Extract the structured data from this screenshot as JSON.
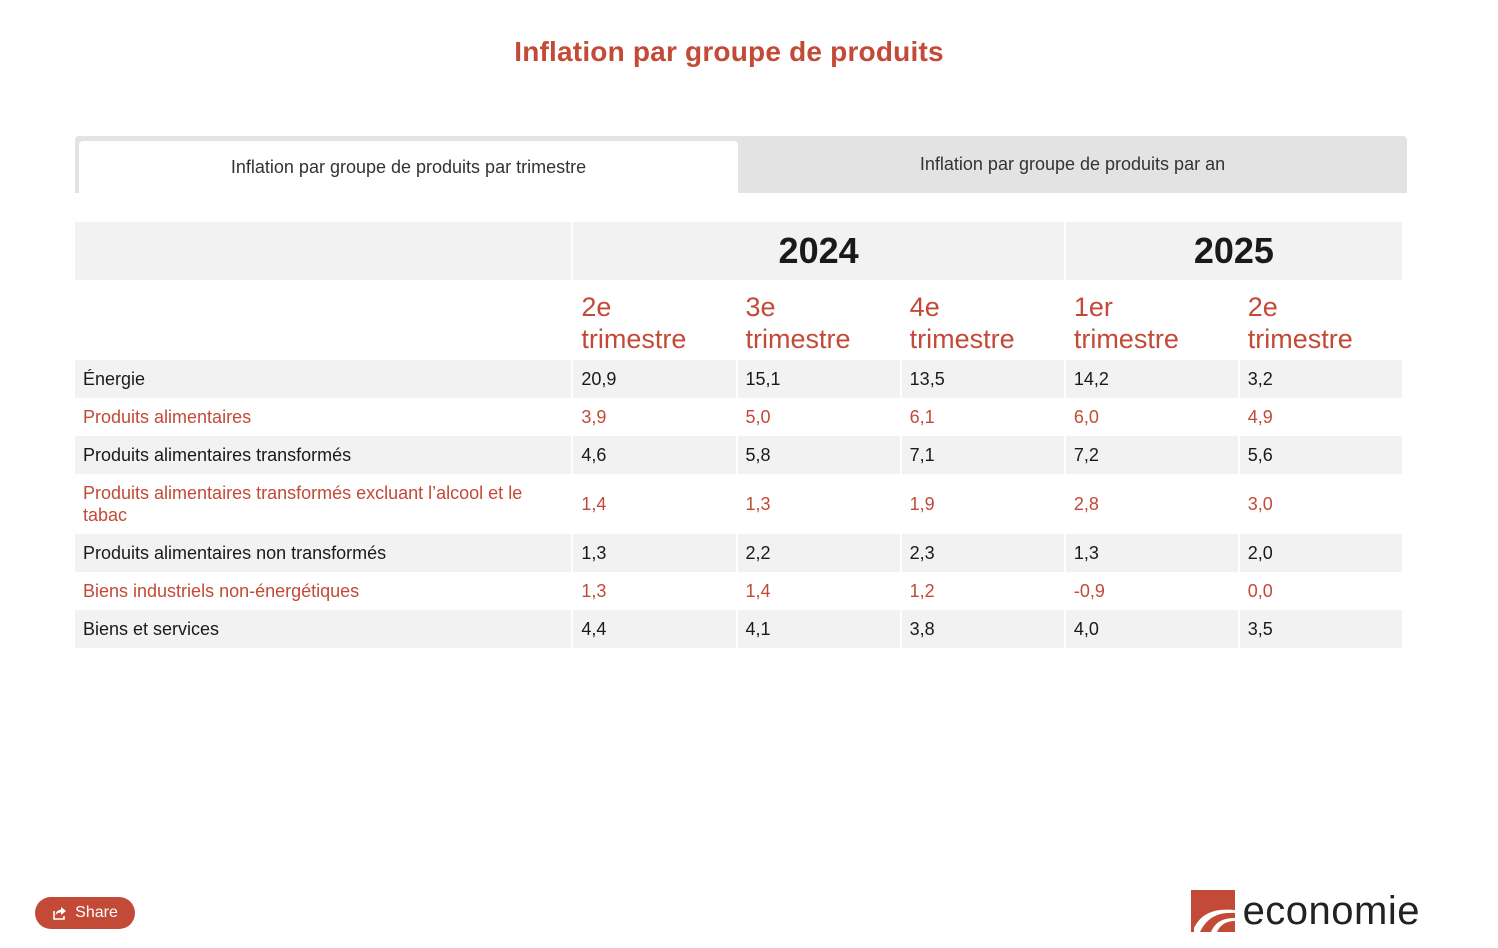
{
  "title": "Inflation par groupe de produits",
  "tabs": [
    {
      "label": "Inflation par groupe de produits par trimestre",
      "active": true
    },
    {
      "label": "Inflation par groupe de produits par an",
      "active": false
    }
  ],
  "table": {
    "years": [
      {
        "label": "2024",
        "span": 3
      },
      {
        "label": "2025",
        "span": 2
      }
    ],
    "quarters": [
      {
        "line1": "2e",
        "line2": "trimestre"
      },
      {
        "line1": "3e",
        "line2": "trimestre"
      },
      {
        "line1": "4e",
        "line2": "trimestre"
      },
      {
        "line1": "1er",
        "line2": "trimestre"
      },
      {
        "line1": "2e",
        "line2": "trimestre"
      }
    ],
    "rows": [
      {
        "label": "Énergie",
        "values": [
          "20,9",
          "15,1",
          "13,5",
          "14,2",
          "3,2"
        ]
      },
      {
        "label": "Produits alimentaires",
        "values": [
          "3,9",
          "5,0",
          "6,1",
          "6,0",
          "4,9"
        ]
      },
      {
        "label": "Produits alimentaires transformés",
        "values": [
          "4,6",
          "5,8",
          "7,1",
          "7,2",
          "5,6"
        ]
      },
      {
        "label": "Produits alimentaires transformés excluant l’alcool et le tabac",
        "values": [
          "1,4",
          "1,3",
          "1,9",
          "2,8",
          "3,0"
        ]
      },
      {
        "label": "Produits alimentaires non transformés",
        "values": [
          "1,3",
          "2,2",
          "2,3",
          "1,3",
          "2,0"
        ]
      },
      {
        "label": "Biens industriels non-énergétiques",
        "values": [
          "1,3",
          "1,4",
          "1,2",
          "-0,9",
          "0,0"
        ]
      },
      {
        "label": "Biens et services",
        "values": [
          "4,4",
          "4,1",
          "3,8",
          "4,0",
          "3,5"
        ]
      }
    ]
  },
  "share": {
    "label": "Share",
    "icon": "share-icon"
  },
  "logo": {
    "text": "economie",
    "icon": "economie-logo-mark"
  },
  "colors": {
    "accent": "#c24a37",
    "row_shade": "#f2f2f2",
    "tab_bg": "#e3e3e3"
  }
}
